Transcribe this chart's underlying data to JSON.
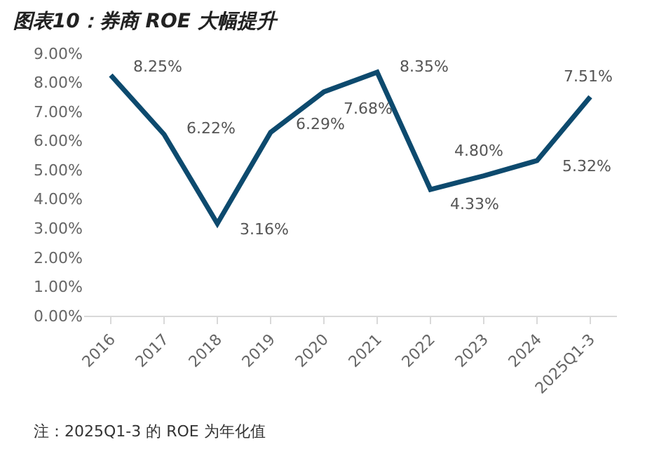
{
  "chart_data": {
    "type": "line",
    "title": "图表10：券商 ROE 大幅提升",
    "categories": [
      "2016",
      "2017",
      "2018",
      "2019",
      "2020",
      "2021",
      "2022",
      "2023",
      "2024",
      "2025Q1-3"
    ],
    "series": [
      {
        "color": "#0d4a6e",
        "values": [
          8.25,
          6.22,
          3.16,
          6.29,
          7.68,
          8.35,
          4.33,
          4.8,
          5.32,
          7.51
        ],
        "value_labels": [
          "8.25%",
          "6.22%",
          "3.16%",
          "6.29%",
          "7.68%",
          "8.35%",
          "4.33%",
          "4.80%",
          "5.32%",
          "7.51%"
        ]
      }
    ],
    "ylim": [
      0,
      9
    ],
    "yticks": [
      {
        "value": 0,
        "label": "0.00%"
      },
      {
        "value": 1,
        "label": "1.00%"
      },
      {
        "value": 2,
        "label": "2.00%"
      },
      {
        "value": 3,
        "label": "3.00%"
      },
      {
        "value": 4,
        "label": "4.00%"
      },
      {
        "value": 5,
        "label": "5.00%"
      },
      {
        "value": 6,
        "label": "6.00%"
      },
      {
        "value": 7,
        "label": "7.00%"
      },
      {
        "value": 8,
        "label": "8.00%"
      },
      {
        "value": 9,
        "label": "9.00%"
      }
    ],
    "marker": "none",
    "line_style": "solid",
    "annotations": [
      "注：2025Q1-3 的 ROE 为年化值"
    ]
  }
}
